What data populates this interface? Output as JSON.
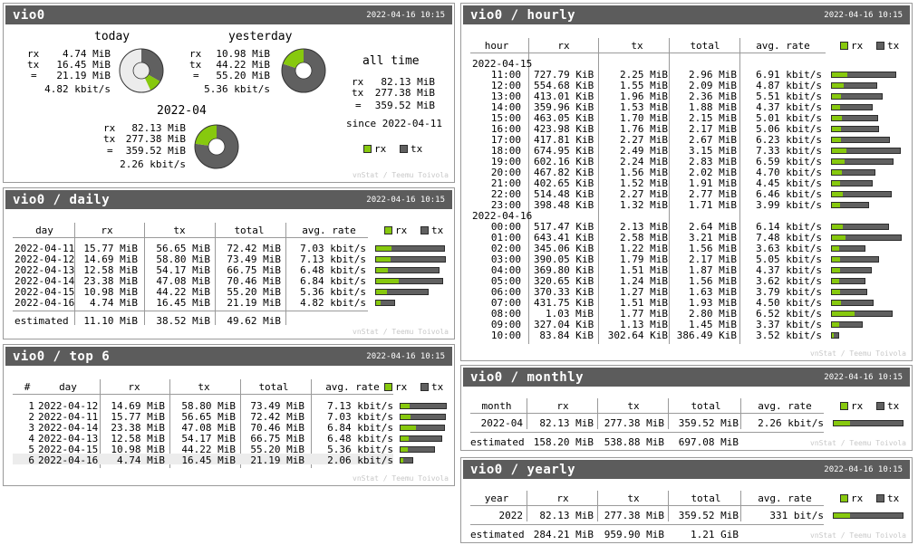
{
  "colors": {
    "rx": "#87c90e",
    "tx": "#606060",
    "header": "#5c5c5c"
  },
  "interface": "vio0",
  "timestamp": "2022-04-16 10:15",
  "credit": "vnStat / Teemu Toivola",
  "legend": {
    "rx": "rx",
    "tx": "tx"
  },
  "summary": {
    "title": "vio0",
    "today": {
      "label": "today",
      "rx": "4.74 MiB",
      "tx": "16.45 MiB",
      "total": "21.19 MiB",
      "rate": "4.82 kbit/s",
      "rx_share": 0.224,
      "day_fraction": 0.43
    },
    "yesterday": {
      "label": "yesterday",
      "rx": "10.98 MiB",
      "tx": "44.22 MiB",
      "total": "55.20 MiB",
      "rate": "5.36 kbit/s",
      "rx_share": 0.199
    },
    "month": {
      "label": "2022-04",
      "rx": "82.13 MiB",
      "tx": "277.38 MiB",
      "total": "359.52 MiB",
      "rate": "2.26 kbit/s",
      "rx_share": 0.228
    },
    "alltime": {
      "label": "all time",
      "rx": "82.13 MiB",
      "tx": "277.38 MiB",
      "total": "359.52 MiB",
      "since": "since 2022-04-11"
    },
    "rx_key": "rx",
    "tx_key": "tx",
    "eq": "="
  },
  "daily": {
    "title": "vio0 / daily",
    "headers": [
      "day",
      "rx",
      "tx",
      "total",
      "avg. rate"
    ],
    "rows": [
      {
        "c": [
          "2022-04-11",
          "15.77 MiB",
          "56.65 MiB",
          "72.42 MiB",
          "7.03 kbit/s"
        ],
        "total": 72.42,
        "rx": 15.77
      },
      {
        "c": [
          "2022-04-12",
          "14.69 MiB",
          "58.80 MiB",
          "73.49 MiB",
          "7.13 kbit/s"
        ],
        "total": 73.49,
        "rx": 14.69
      },
      {
        "c": [
          "2022-04-13",
          "12.58 MiB",
          "54.17 MiB",
          "66.75 MiB",
          "6.48 kbit/s"
        ],
        "total": 66.75,
        "rx": 12.58
      },
      {
        "c": [
          "2022-04-14",
          "23.38 MiB",
          "47.08 MiB",
          "70.46 MiB",
          "6.84 kbit/s"
        ],
        "total": 70.46,
        "rx": 23.38
      },
      {
        "c": [
          "2022-04-15",
          "10.98 MiB",
          "44.22 MiB",
          "55.20 MiB",
          "5.36 kbit/s"
        ],
        "total": 55.2,
        "rx": 10.98
      },
      {
        "c": [
          "2022-04-16",
          "4.74 MiB",
          "16.45 MiB",
          "21.19 MiB",
          "4.82 kbit/s"
        ],
        "total": 21.19,
        "rx": 4.74
      }
    ],
    "estimated": [
      "estimated",
      "11.10 MiB",
      "38.52 MiB",
      "49.62 MiB"
    ]
  },
  "top": {
    "title": "vio0 / top 6",
    "headers": [
      "#",
      "day",
      "rx",
      "tx",
      "total",
      "avg. rate"
    ],
    "rows": [
      {
        "c": [
          "1",
          "2022-04-12",
          "14.69 MiB",
          "58.80 MiB",
          "73.49 MiB",
          "7.13 kbit/s"
        ],
        "total": 73.49,
        "rx": 14.69
      },
      {
        "c": [
          "2",
          "2022-04-11",
          "15.77 MiB",
          "56.65 MiB",
          "72.42 MiB",
          "7.03 kbit/s"
        ],
        "total": 72.42,
        "rx": 15.77
      },
      {
        "c": [
          "3",
          "2022-04-14",
          "23.38 MiB",
          "47.08 MiB",
          "70.46 MiB",
          "6.84 kbit/s"
        ],
        "total": 70.46,
        "rx": 23.38
      },
      {
        "c": [
          "4",
          "2022-04-13",
          "12.58 MiB",
          "54.17 MiB",
          "66.75 MiB",
          "6.48 kbit/s"
        ],
        "total": 66.75,
        "rx": 12.58
      },
      {
        "c": [
          "5",
          "2022-04-15",
          "10.98 MiB",
          "44.22 MiB",
          "55.20 MiB",
          "5.36 kbit/s"
        ],
        "total": 55.2,
        "rx": 10.98
      },
      {
        "c": [
          "6",
          "2022-04-16",
          "4.74 MiB",
          "16.45 MiB",
          "21.19 MiB",
          "2.06 kbit/s"
        ],
        "total": 21.19,
        "rx": 4.74
      }
    ]
  },
  "hourly": {
    "title": "vio0 / hourly",
    "headers": [
      "hour",
      "rx",
      "tx",
      "total",
      "avg. rate"
    ],
    "groups": [
      {
        "date": "2022-04-15",
        "rows": [
          {
            "c": [
              "11:00",
              "727.79 KiB",
              "2.25 MiB",
              "2.96 MiB",
              "6.91 kbit/s"
            ],
            "total": 2.96,
            "rx": 0.71
          },
          {
            "c": [
              "12:00",
              "554.68 KiB",
              "1.55 MiB",
              "2.09 MiB",
              "4.87 kbit/s"
            ],
            "total": 2.09,
            "rx": 0.54
          },
          {
            "c": [
              "13:00",
              "413.01 KiB",
              "1.96 MiB",
              "2.36 MiB",
              "5.51 kbit/s"
            ],
            "total": 2.36,
            "rx": 0.4
          },
          {
            "c": [
              "14:00",
              "359.96 KiB",
              "1.53 MiB",
              "1.88 MiB",
              "4.37 kbit/s"
            ],
            "total": 1.88,
            "rx": 0.35
          },
          {
            "c": [
              "15:00",
              "463.05 KiB",
              "1.70 MiB",
              "2.15 MiB",
              "5.01 kbit/s"
            ],
            "total": 2.15,
            "rx": 0.45
          },
          {
            "c": [
              "16:00",
              "423.98 KiB",
              "1.76 MiB",
              "2.17 MiB",
              "5.06 kbit/s"
            ],
            "total": 2.17,
            "rx": 0.41
          },
          {
            "c": [
              "17:00",
              "417.81 KiB",
              "2.27 MiB",
              "2.67 MiB",
              "6.23 kbit/s"
            ],
            "total": 2.67,
            "rx": 0.41
          },
          {
            "c": [
              "18:00",
              "674.95 KiB",
              "2.49 MiB",
              "3.15 MiB",
              "7.33 kbit/s"
            ],
            "total": 3.15,
            "rx": 0.66
          },
          {
            "c": [
              "19:00",
              "602.16 KiB",
              "2.24 MiB",
              "2.83 MiB",
              "6.59 kbit/s"
            ],
            "total": 2.83,
            "rx": 0.59
          },
          {
            "c": [
              "20:00",
              "467.82 KiB",
              "1.56 MiB",
              "2.02 MiB",
              "4.70 kbit/s"
            ],
            "total": 2.02,
            "rx": 0.46
          },
          {
            "c": [
              "21:00",
              "402.65 KiB",
              "1.52 MiB",
              "1.91 MiB",
              "4.45 kbit/s"
            ],
            "total": 1.91,
            "rx": 0.39
          },
          {
            "c": [
              "22:00",
              "514.48 KiB",
              "2.27 MiB",
              "2.77 MiB",
              "6.46 kbit/s"
            ],
            "total": 2.77,
            "rx": 0.5
          },
          {
            "c": [
              "23:00",
              "398.48 KiB",
              "1.32 MiB",
              "1.71 MiB",
              "3.99 kbit/s"
            ],
            "total": 1.71,
            "rx": 0.39
          }
        ]
      },
      {
        "date": "2022-04-16",
        "rows": [
          {
            "c": [
              "00:00",
              "517.47 KiB",
              "2.13 MiB",
              "2.64 MiB",
              "6.14 kbit/s"
            ],
            "total": 2.64,
            "rx": 0.51
          },
          {
            "c": [
              "01:00",
              "643.41 KiB",
              "2.58 MiB",
              "3.21 MiB",
              "7.48 kbit/s"
            ],
            "total": 3.21,
            "rx": 0.63
          },
          {
            "c": [
              "02:00",
              "345.06 KiB",
              "1.22 MiB",
              "1.56 MiB",
              "3.63 kbit/s"
            ],
            "total": 1.56,
            "rx": 0.34
          },
          {
            "c": [
              "03:00",
              "390.05 KiB",
              "1.79 MiB",
              "2.17 MiB",
              "5.05 kbit/s"
            ],
            "total": 2.17,
            "rx": 0.38
          },
          {
            "c": [
              "04:00",
              "369.80 KiB",
              "1.51 MiB",
              "1.87 MiB",
              "4.37 kbit/s"
            ],
            "total": 1.87,
            "rx": 0.36
          },
          {
            "c": [
              "05:00",
              "320.65 KiB",
              "1.24 MiB",
              "1.56 MiB",
              "3.62 kbit/s"
            ],
            "total": 1.56,
            "rx": 0.31
          },
          {
            "c": [
              "06:00",
              "370.33 KiB",
              "1.27 MiB",
              "1.63 MiB",
              "3.79 kbit/s"
            ],
            "total": 1.63,
            "rx": 0.36
          },
          {
            "c": [
              "07:00",
              "431.75 KiB",
              "1.51 MiB",
              "1.93 MiB",
              "4.50 kbit/s"
            ],
            "total": 1.93,
            "rx": 0.42
          },
          {
            "c": [
              "08:00",
              "1.03 MiB",
              "1.77 MiB",
              "2.80 MiB",
              "6.52 kbit/s"
            ],
            "total": 2.8,
            "rx": 1.03
          },
          {
            "c": [
              "09:00",
              "327.04 KiB",
              "1.13 MiB",
              "1.45 MiB",
              "3.37 kbit/s"
            ],
            "total": 1.45,
            "rx": 0.32
          },
          {
            "c": [
              "10:00",
              "83.84 KiB",
              "302.64 KiB",
              "386.49 KiB",
              "3.52 kbit/s"
            ],
            "total": 0.38,
            "rx": 0.08
          }
        ]
      }
    ]
  },
  "monthly": {
    "title": "vio0 / monthly",
    "headers": [
      "month",
      "rx",
      "tx",
      "total",
      "avg. rate"
    ],
    "rows": [
      {
        "c": [
          "2022-04",
          "82.13 MiB",
          "277.38 MiB",
          "359.52 MiB",
          "2.26 kbit/s"
        ],
        "total": 359.52,
        "rx": 82.13
      }
    ],
    "estimated": [
      "estimated",
      "158.20 MiB",
      "538.88 MiB",
      "697.08 MiB"
    ]
  },
  "yearly": {
    "title": "vio0 / yearly",
    "headers": [
      "year",
      "rx",
      "tx",
      "total",
      "avg. rate"
    ],
    "rows": [
      {
        "c": [
          "2022",
          "82.13 MiB",
          "277.38 MiB",
          "359.52 MiB",
          "331 bit/s"
        ],
        "total": 359.52,
        "rx": 82.13
      }
    ],
    "estimated": [
      "estimated",
      "284.21 MiB",
      "959.90 MiB",
      "1.21 GiB"
    ]
  }
}
